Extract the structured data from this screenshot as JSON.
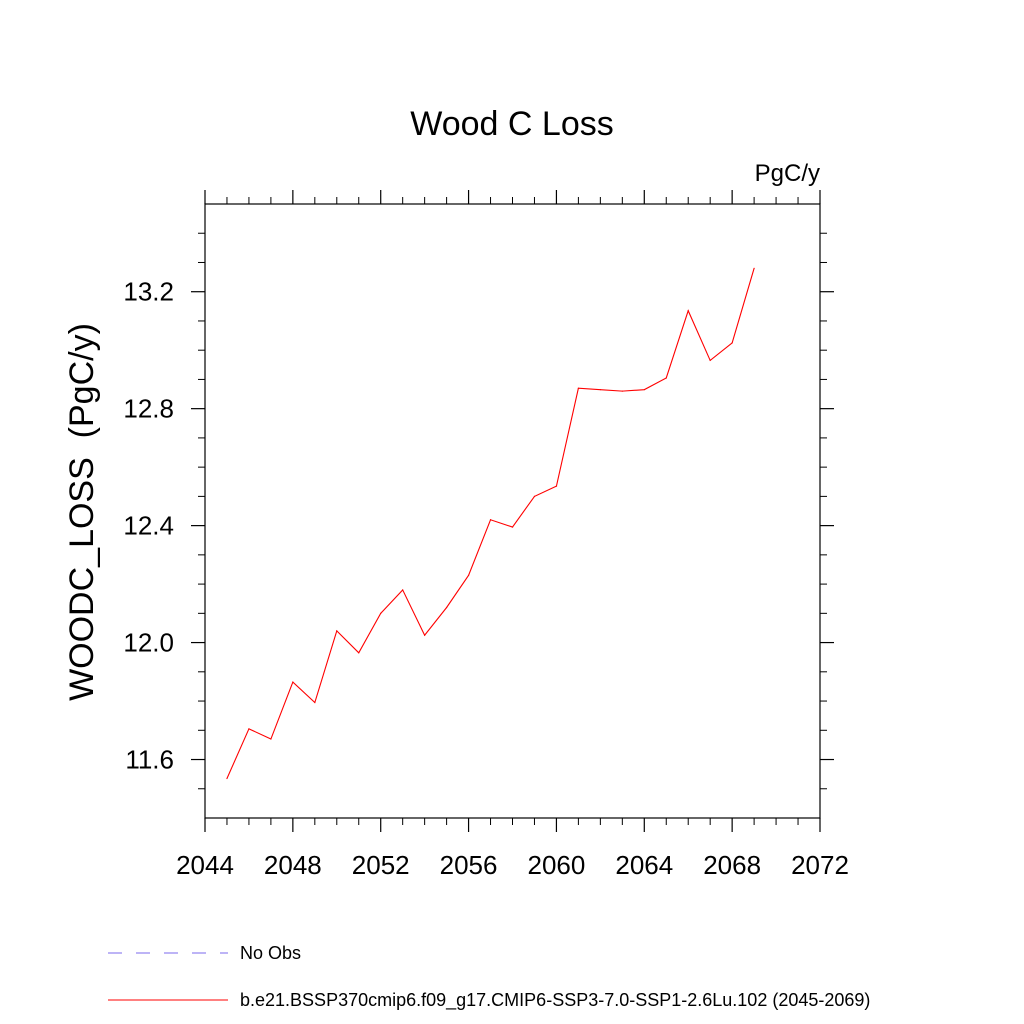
{
  "chart_data": {
    "type": "line",
    "title": "Wood C Loss",
    "units": "PgC/y",
    "ylabel": "WOODC_LOSS  (PgC/y)",
    "xlabel": "",
    "xlim": [
      2044,
      2072
    ],
    "ylim": [
      11.4,
      13.5
    ],
    "x_ticks": [
      2044,
      2048,
      2052,
      2056,
      2060,
      2064,
      2068,
      2072
    ],
    "x_tick_labels": [
      "2044",
      "2048",
      "2052",
      "2056",
      "2060",
      "2064",
      "2068",
      "2072"
    ],
    "y_ticks": [
      11.6,
      12.0,
      12.4,
      12.8,
      13.2
    ],
    "y_tick_labels": [
      "11.6",
      "12.0",
      "12.4",
      "12.8",
      "13.2"
    ],
    "grid": false,
    "series": [
      {
        "name": "b.e21.BSSP370cmip6.f09_g17.CMIP6-SSP3-7.0-SSP1-2.6Lu.102 (2045-2069)",
        "color": "#ff0000",
        "x": [
          2045,
          2046,
          2047,
          2048,
          2049,
          2050,
          2051,
          2052,
          2053,
          2054,
          2055,
          2056,
          2057,
          2058,
          2059,
          2060,
          2061,
          2062,
          2063,
          2064,
          2065,
          2066,
          2067,
          2068,
          2069
        ],
        "values": [
          11.535,
          11.705,
          11.67,
          11.865,
          11.795,
          12.04,
          11.965,
          12.1,
          12.18,
          12.025,
          12.12,
          12.23,
          12.42,
          12.395,
          12.5,
          12.535,
          12.87,
          12.865,
          12.86,
          12.865,
          12.905,
          13.135,
          12.965,
          13.025,
          13.28
        ]
      }
    ],
    "legend": {
      "placement": "bottom-left",
      "items": [
        {
          "label": "No Obs",
          "color": "#7b68ee",
          "style": "dashed"
        },
        {
          "label": "b.e21.BSSP370cmip6.f09_g17.CMIP6-SSP3-7.0-SSP1-2.6Lu.102 (2045-2069)",
          "color": "#ff0000",
          "style": "solid"
        }
      ]
    }
  }
}
